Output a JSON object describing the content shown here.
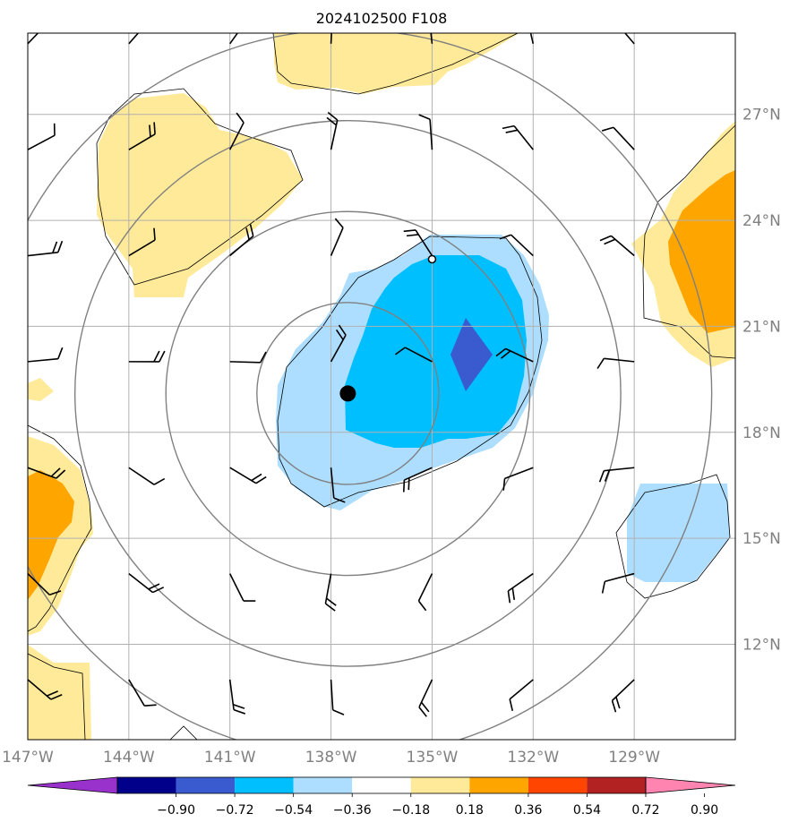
{
  "title": "2024102500 F108",
  "map": {
    "lon_range": [
      -147,
      -126
    ],
    "lat_range": [
      9.3,
      29.3
    ],
    "lon_ticks": [
      {
        "value": -147,
        "label": "147°W"
      },
      {
        "value": -144,
        "label": "144°W"
      },
      {
        "value": -141,
        "label": "141°W"
      },
      {
        "value": -138,
        "label": "138°W"
      },
      {
        "value": -135,
        "label": "135°W"
      },
      {
        "value": -132,
        "label": "132°W"
      },
      {
        "value": -129,
        "label": "129°W"
      }
    ],
    "lat_ticks": [
      {
        "value": 27,
        "label": "27°N"
      },
      {
        "value": 24,
        "label": "24°N"
      },
      {
        "value": 21,
        "label": "21°N"
      },
      {
        "value": 18,
        "label": "18°N"
      },
      {
        "value": 15,
        "label": "15°N"
      },
      {
        "value": 12,
        "label": "12°N"
      }
    ],
    "grid": true,
    "tick_label_color": "#808080",
    "storm_center": {
      "lon": -137.5,
      "lat": 19.1
    },
    "reference_point": {
      "lon": -135.0,
      "lat": 22.9
    },
    "range_rings_deg": [
      2.7,
      5.4,
      8.1,
      10.8
    ],
    "wind_barbs": "grid every 3 degrees longitude and latitude"
  },
  "colorbar": {
    "tick_labels": [
      "−0.90",
      "−0.72",
      "−0.54",
      "−0.36",
      "−0.18",
      "0.18",
      "0.36",
      "0.54",
      "0.72",
      "0.90"
    ],
    "colors": [
      "#9932cc",
      "#00008b",
      "#3a5bcf",
      "#00bfff",
      "#addeff",
      "#ffffff",
      "#ffea99",
      "#ffa500",
      "#ff4500",
      "#b22222",
      "#ff85b0"
    ],
    "extend": "both"
  }
}
